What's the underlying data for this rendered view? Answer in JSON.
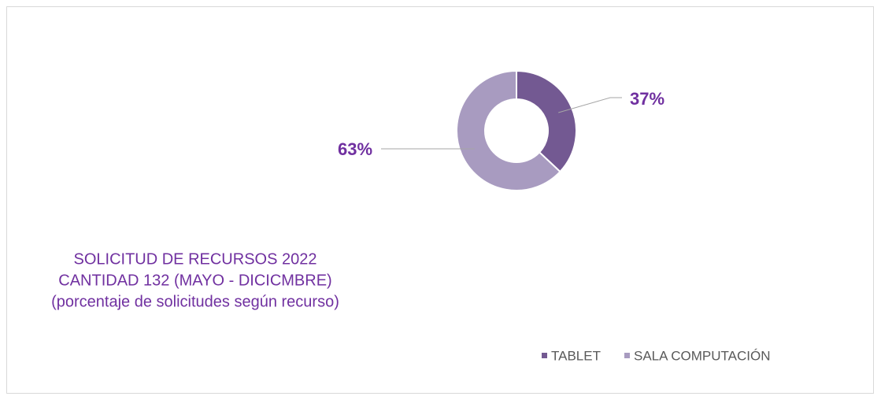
{
  "chart_data": {
    "type": "pie",
    "donut": true,
    "title": [
      "SOLICITUD DE RECURSOS 2022",
      "CANTIDAD 132 (MAYO - DICICMBRE)",
      "(porcentaje de solicitudes según recurso)"
    ],
    "categories": [
      "TABLET",
      "SALA COMPUTACIÓN"
    ],
    "values": [
      37,
      63
    ],
    "value_labels": [
      "37%",
      "63%"
    ],
    "colors": [
      "#735992",
      "#a89bc0"
    ],
    "legend": "bottom-right"
  }
}
